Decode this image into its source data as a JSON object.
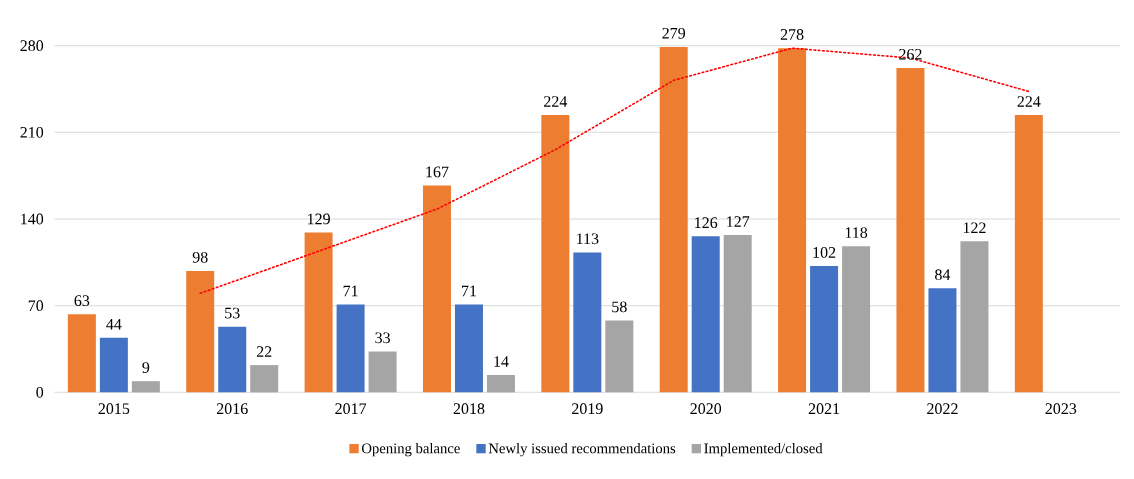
{
  "chart_data": {
    "type": "bar",
    "categories": [
      "2015",
      "2016",
      "2017",
      "2018",
      "2019",
      "2020",
      "2021",
      "2022",
      "2023"
    ],
    "series": [
      {
        "name": "Opening balance",
        "color": "#ed7d31",
        "values": [
          63,
          98,
          129,
          167,
          224,
          279,
          278,
          262,
          224
        ],
        "value_labels": [
          "63",
          "98",
          "129",
          "167",
          "224",
          "279",
          "278",
          "262",
          "224"
        ]
      },
      {
        "name": "Newly issued recommendations",
        "color": "#4472c4",
        "values": [
          44,
          53,
          71,
          71,
          113,
          126,
          102,
          84,
          null
        ],
        "value_labels": [
          "44",
          "53",
          "71",
          "71",
          "113",
          "126",
          "102",
          "84",
          null
        ]
      },
      {
        "name": "Implemented/closed",
        "color": "#a5a5a5",
        "values": [
          9,
          22,
          33,
          14,
          58,
          127,
          118,
          122,
          null
        ],
        "value_labels": [
          "9",
          "22",
          "33",
          "14",
          "58",
          "127",
          "118",
          "122",
          null
        ]
      },
      {
        "type": "line",
        "color": "#ff0000",
        "line_style": "dotted",
        "marker": "none",
        "values": [
          null,
          80,
          114,
          148,
          196,
          252,
          278,
          270,
          243
        ]
      }
    ],
    "ylim": [
      0,
      280
    ],
    "yticks": [
      0,
      70,
      140,
      210,
      280
    ],
    "grid": "y",
    "legend": "bottom"
  }
}
